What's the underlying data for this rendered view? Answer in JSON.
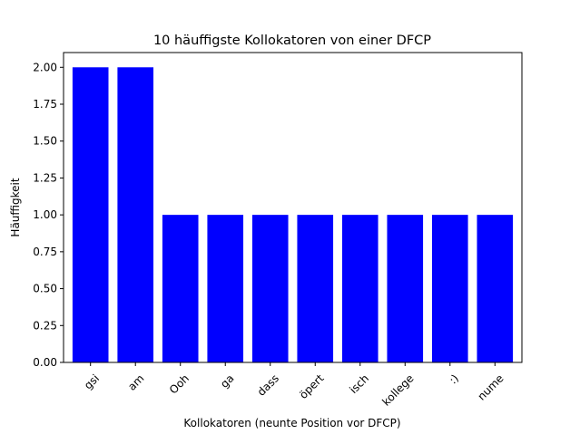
{
  "chart_data": {
    "type": "bar",
    "title": "10 häuffigste Kollokatoren von einer DFCP",
    "xlabel": "Kollokatoren (neunte Position vor DFCP)",
    "ylabel": "Häuffigkeit",
    "categories": [
      "gsi",
      "am",
      "Ooh",
      "ga",
      "dass",
      "öpert",
      "isch",
      "kollege",
      ":)",
      "nume"
    ],
    "values": [
      2,
      2,
      1,
      1,
      1,
      1,
      1,
      1,
      1,
      1
    ],
    "ylim": [
      0,
      2.1
    ],
    "yticks": [
      "0.00",
      "0.25",
      "0.50",
      "0.75",
      "1.00",
      "1.25",
      "1.50",
      "1.75",
      "2.00"
    ],
    "bar_color": "#0000ff",
    "grid": false,
    "legend": "none"
  }
}
